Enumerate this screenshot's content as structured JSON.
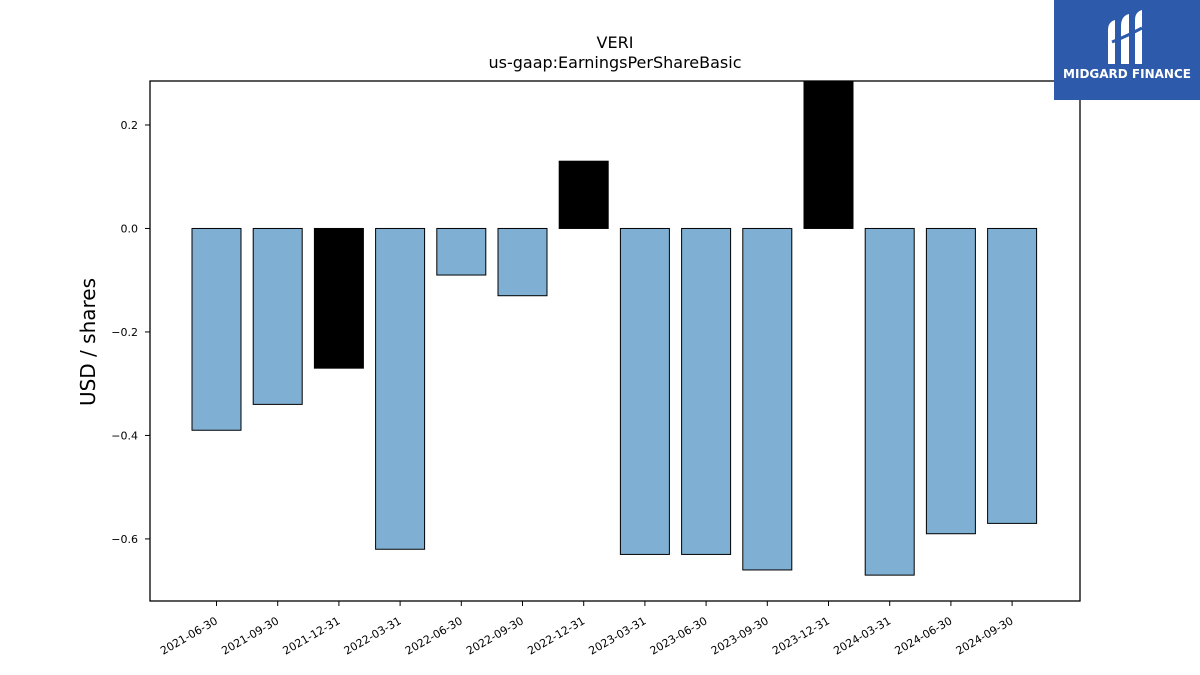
{
  "chart_data": {
    "type": "bar",
    "title": "VERI",
    "subtitle": "us-gaap:EarningsPerShareBasic",
    "ylabel": "USD / shares",
    "xlabel": "",
    "ylim": [
      -0.72,
      0.285
    ],
    "yticks": [
      0.2,
      0.0,
      -0.2,
      -0.4,
      -0.6
    ],
    "ytick_labels": [
      "0.2",
      "0.0",
      "−0.2",
      "−0.4",
      "−0.6"
    ],
    "categories": [
      "2021-06-30",
      "2021-09-30",
      "2021-12-31",
      "2022-03-31",
      "2022-06-30",
      "2022-09-30",
      "2022-12-31",
      "2023-03-31",
      "2023-06-30",
      "2023-09-30",
      "2023-12-31",
      "2024-03-31",
      "2024-06-30",
      "2024-09-30"
    ],
    "values": [
      -0.39,
      -0.34,
      -0.27,
      -0.62,
      -0.09,
      -0.13,
      0.13,
      -0.63,
      -0.63,
      -0.66,
      0.32,
      -0.67,
      -0.59,
      -0.57
    ],
    "highlighted": [
      false,
      false,
      true,
      false,
      false,
      false,
      true,
      false,
      false,
      false,
      true,
      false,
      false,
      false
    ],
    "colors": {
      "bar": "#7fb0d3",
      "highlight": "#000000",
      "edge": "#000000"
    },
    "grid": false,
    "legend": "none"
  },
  "brand": {
    "name": "MIDGARD FINANCE",
    "background": "#2d5aab",
    "icon": "midgard-logo-icon"
  }
}
